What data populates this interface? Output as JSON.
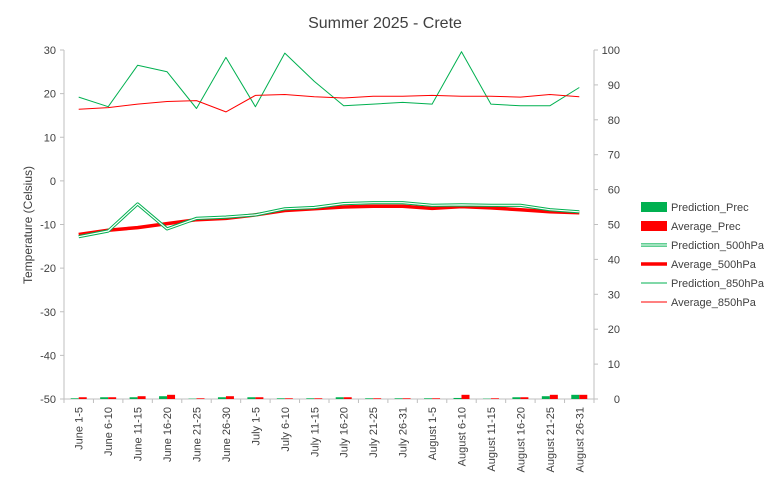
{
  "chart_data": {
    "type": "line",
    "title": "Summer 2025 - Crete",
    "ylabel": "Temperature (Celsius)",
    "y2label": "",
    "ylim": [
      -50,
      30
    ],
    "y_ticks": [
      30,
      20,
      10,
      0,
      -10,
      -20,
      -30,
      -40,
      -50
    ],
    "y2lim": [
      0,
      100
    ],
    "y2_ticks": [
      100,
      90,
      80,
      70,
      60,
      50,
      40,
      30,
      20,
      10,
      0
    ],
    "grid": false,
    "legend_position": "right",
    "categories": [
      "June 1-5",
      "June 6-10",
      "June 11-15",
      "June 16-20",
      "June 21-25",
      "June 26-30",
      "July 1-5",
      "July 6-10",
      "July 11-15",
      "July 16-20",
      "July 21-25",
      "July 26-31",
      "August 1-5",
      "August 6-10",
      "August 11-15",
      "August 16-20",
      "August 21-25",
      "August 26-31"
    ],
    "series": [
      {
        "name": "Prediction_Prec",
        "type": "bar",
        "axis": "right",
        "color": "#00b050",
        "values": [
          0.2,
          0.5,
          0.5,
          0.8,
          0.1,
          0.5,
          0.5,
          0.2,
          0.2,
          0.5,
          0.2,
          0.2,
          0.2,
          0.3,
          0.1,
          0.5,
          0.8,
          1.2
        ]
      },
      {
        "name": "Average_Prec",
        "type": "bar",
        "axis": "right",
        "color": "#ff0000",
        "values": [
          0.5,
          0.5,
          0.8,
          1.2,
          0.2,
          0.8,
          0.5,
          0.2,
          0.2,
          0.5,
          0.2,
          0.2,
          0.2,
          1.2,
          0.2,
          0.5,
          1.2,
          1.2
        ]
      },
      {
        "name": "Prediction_500hPa",
        "type": "line",
        "axis": "left",
        "color": "#00b050",
        "style": "double",
        "values": [
          -12.8,
          -11.5,
          -5.3,
          -11.0,
          -8.6,
          -8.3,
          -7.8,
          -6.4,
          -6.1,
          -5.2,
          -5.0,
          -5.0,
          -5.6,
          -5.5,
          -5.6,
          -5.6,
          -6.6,
          -7.1
        ]
      },
      {
        "name": "Average_500hPa",
        "type": "line",
        "axis": "left",
        "color": "#ff0000",
        "style": "thick",
        "values": [
          -12.3,
          -11.3,
          -10.7,
          -9.8,
          -8.9,
          -8.6,
          -7.8,
          -6.8,
          -6.4,
          -6.0,
          -5.8,
          -5.8,
          -6.3,
          -5.9,
          -6.2,
          -6.6,
          -7.1,
          -7.3
        ]
      },
      {
        "name": "Prediction_850hPa",
        "type": "line",
        "axis": "left",
        "color": "#00b050",
        "style": "thin",
        "values": [
          19.2,
          17.0,
          26.5,
          25.0,
          16.6,
          28.3,
          17.0,
          29.3,
          22.8,
          17.2,
          17.6,
          18.0,
          17.6,
          29.6,
          17.6,
          17.2,
          17.2,
          21.4
        ]
      },
      {
        "name": "Average_850hPa",
        "type": "line",
        "axis": "left",
        "color": "#ff0000",
        "style": "thin",
        "values": [
          16.4,
          16.8,
          17.6,
          18.2,
          18.4,
          15.8,
          19.6,
          19.8,
          19.3,
          19.0,
          19.4,
          19.4,
          19.6,
          19.4,
          19.4,
          19.2,
          19.8,
          19.3
        ]
      }
    ]
  }
}
